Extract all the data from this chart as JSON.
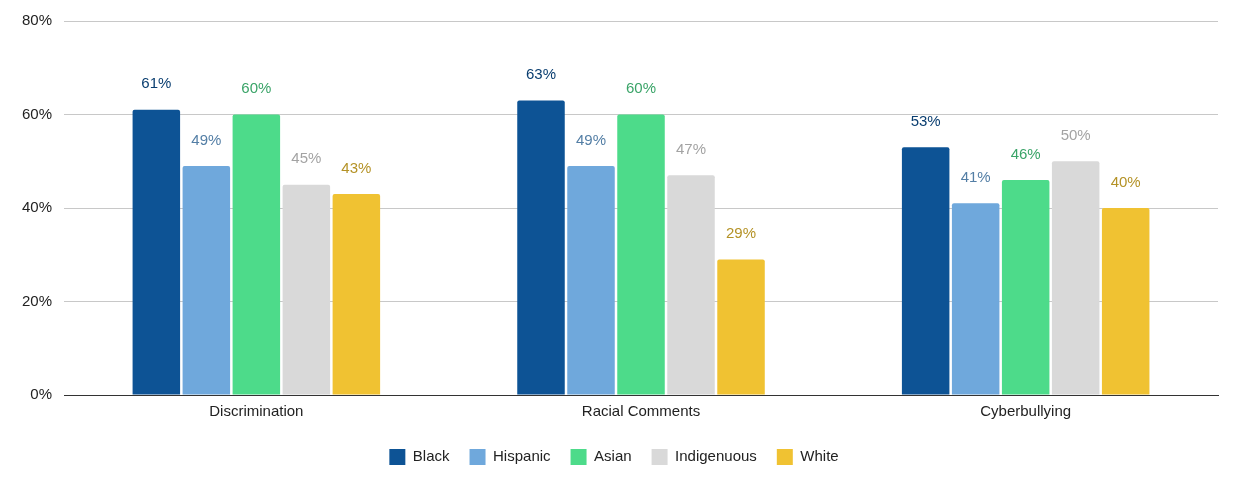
{
  "chart_data": {
    "type": "bar",
    "categories": [
      "Discrimination",
      "Racial Comments",
      "Cyberbullying"
    ],
    "series": [
      {
        "name": "Black",
        "color": "#0d5395",
        "values": [
          61,
          63,
          53
        ],
        "value_labels": [
          "61%",
          "63%",
          "53%"
        ]
      },
      {
        "name": "Hispanic",
        "color": "#6fa8dc",
        "values": [
          49,
          49,
          41
        ],
        "value_labels": [
          "49%",
          "49%",
          "41%"
        ]
      },
      {
        "name": "Asian",
        "color": "#4ddb8a",
        "values": [
          60,
          60,
          46
        ],
        "value_labels": [
          "60%",
          "60%",
          "46%"
        ]
      },
      {
        "name": "Indigenuous",
        "color": "#d9d9d9",
        "values": [
          45,
          47,
          50
        ],
        "value_labels": [
          "45%",
          "47%",
          "50%"
        ]
      },
      {
        "name": "White",
        "color": "#f0c232",
        "values": [
          43,
          29,
          40
        ],
        "value_labels": [
          "43%",
          "29%",
          "40%"
        ]
      }
    ],
    "ylim": [
      0,
      80
    ],
    "yticks": [
      {
        "value": 0,
        "label": "0%"
      },
      {
        "value": 20,
        "label": "20%"
      },
      {
        "value": 40,
        "label": "40%"
      },
      {
        "value": 60,
        "label": "60%"
      },
      {
        "value": 80,
        "label": "80%"
      }
    ],
    "grid": "y",
    "legend": "bottom"
  }
}
